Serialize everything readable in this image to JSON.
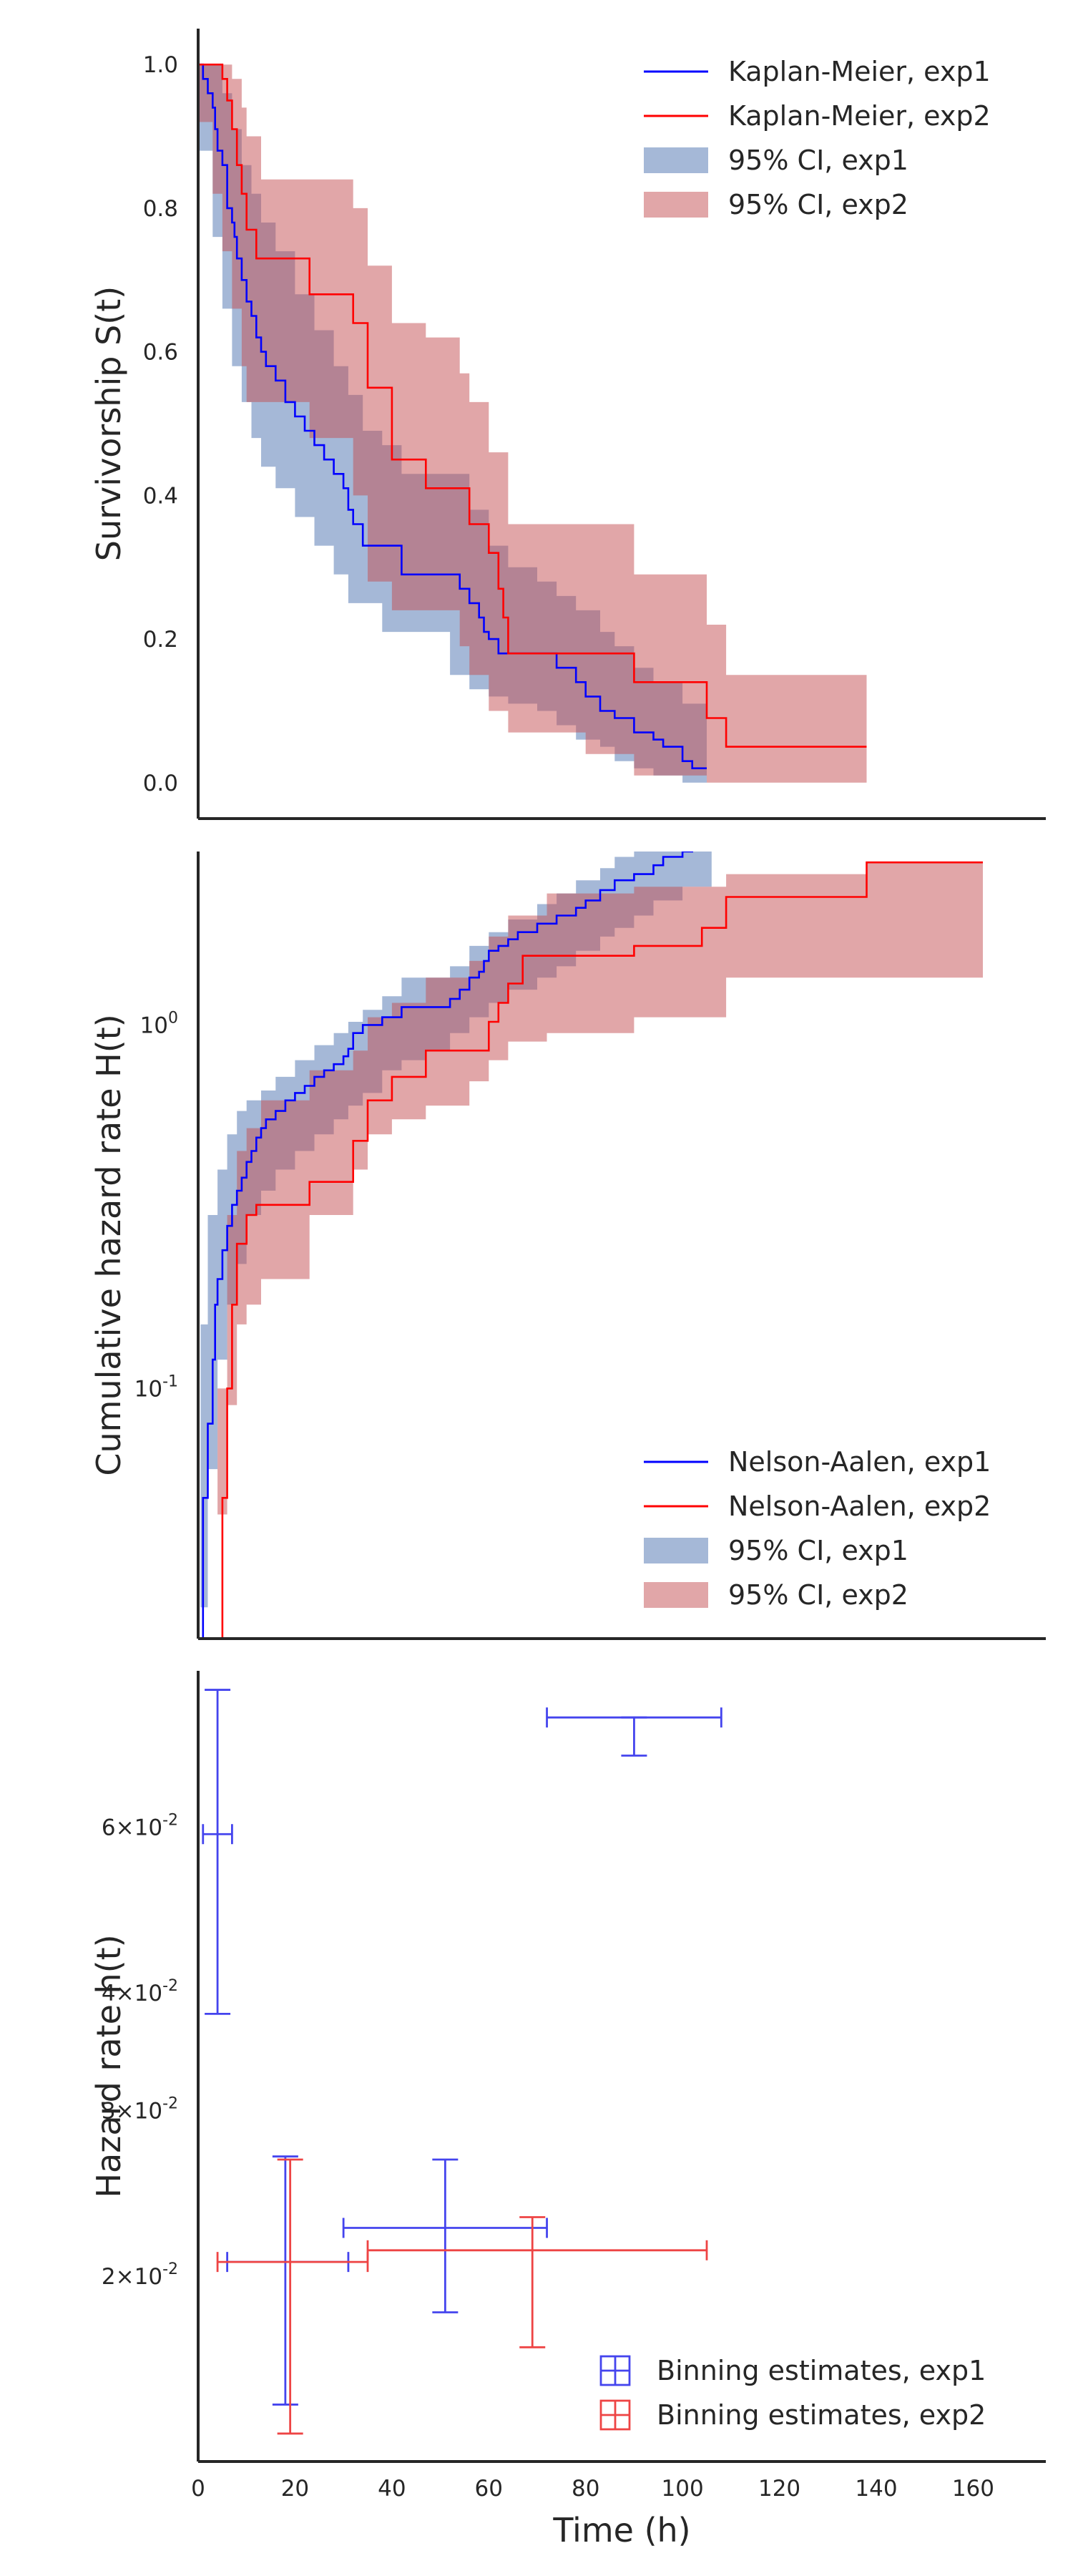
{
  "colors": {
    "exp1": "#0000ff",
    "exp2": "#ff0000",
    "ci_exp1": "#4c72b0",
    "ci_exp2": "#c44e52",
    "bin_exp1": "#4444ee",
    "bin_exp2": "#ee4444"
  },
  "chart_data": [
    {
      "type": "line",
      "ylabel": "Survivorship S(t)",
      "xlim": [
        0,
        175
      ],
      "ylim": [
        -0.05,
        1.05
      ],
      "yticks": [
        0.0,
        0.2,
        0.4,
        0.6,
        0.8,
        1.0
      ],
      "ytick_labels": [
        "0.0",
        "0.2",
        "0.4",
        "0.6",
        "0.8",
        "1.0"
      ],
      "legend_position": "top-right",
      "legend": [
        "Kaplan-Meier, exp1",
        "Kaplan-Meier, exp2",
        "95% CI, exp1",
        "95% CI, exp2"
      ],
      "series": [
        {
          "name": "Kaplan-Meier, exp1",
          "step": true,
          "x": [
            0,
            1,
            2,
            3,
            3.5,
            4,
            5,
            6,
            7,
            7.5,
            8,
            9,
            10,
            11,
            12,
            13,
            14,
            16,
            18,
            20,
            22,
            24,
            26,
            28,
            30,
            31,
            32,
            34,
            38,
            42,
            47,
            52,
            54,
            56,
            58,
            59,
            60,
            62,
            64,
            66,
            70,
            74,
            78,
            80,
            83,
            86,
            90,
            94,
            96,
            100,
            102,
            105
          ],
          "y": [
            1.0,
            0.98,
            0.96,
            0.94,
            0.91,
            0.88,
            0.86,
            0.8,
            0.78,
            0.76,
            0.73,
            0.7,
            0.67,
            0.65,
            0.62,
            0.6,
            0.58,
            0.56,
            0.53,
            0.51,
            0.49,
            0.47,
            0.45,
            0.43,
            0.41,
            0.38,
            0.36,
            0.33,
            0.33,
            0.29,
            0.29,
            0.29,
            0.27,
            0.25,
            0.23,
            0.21,
            0.2,
            0.18,
            0.18,
            0.18,
            0.18,
            0.16,
            0.14,
            0.12,
            0.1,
            0.09,
            0.07,
            0.06,
            0.05,
            0.03,
            0.02,
            0.02
          ]
        },
        {
          "name": "Kaplan-Meier, exp2",
          "step": true,
          "x": [
            0,
            3,
            5,
            6,
            7,
            8,
            9,
            10,
            12,
            15,
            23,
            32,
            35,
            40,
            47,
            54,
            56,
            60,
            62,
            63,
            64,
            67,
            72,
            80,
            90,
            99,
            105,
            109,
            138
          ],
          "y": [
            1.0,
            1.0,
            0.98,
            0.95,
            0.91,
            0.86,
            0.82,
            0.77,
            0.73,
            0.73,
            0.68,
            0.64,
            0.55,
            0.45,
            0.41,
            0.41,
            0.36,
            0.32,
            0.27,
            0.23,
            0.18,
            0.18,
            0.18,
            0.18,
            0.14,
            0.14,
            0.09,
            0.05,
            0.05
          ]
        },
        {
          "name": "95% CI, exp1",
          "band": true,
          "x": [
            0,
            3,
            5,
            7,
            9,
            11,
            13,
            16,
            20,
            24,
            28,
            31,
            34,
            38,
            42,
            47,
            52,
            56,
            60,
            64,
            70,
            74,
            78,
            83,
            86,
            90,
            94,
            100,
            105
          ],
          "lower": [
            1.0,
            0.88,
            0.76,
            0.66,
            0.58,
            0.53,
            0.48,
            0.44,
            0.41,
            0.37,
            0.33,
            0.29,
            0.25,
            0.25,
            0.21,
            0.21,
            0.21,
            0.15,
            0.13,
            0.12,
            0.11,
            0.1,
            0.08,
            0.06,
            0.05,
            0.03,
            0.02,
            0.01,
            0.0
          ],
          "upper": [
            1.0,
            1.0,
            0.96,
            0.91,
            0.86,
            0.82,
            0.78,
            0.74,
            0.68,
            0.63,
            0.58,
            0.54,
            0.49,
            0.47,
            0.43,
            0.43,
            0.43,
            0.38,
            0.33,
            0.3,
            0.28,
            0.26,
            0.24,
            0.21,
            0.19,
            0.16,
            0.14,
            0.11,
            0.07
          ]
        },
        {
          "name": "95% CI, exp2",
          "band": true,
          "x": [
            0,
            3,
            5,
            7,
            9,
            10,
            13,
            23,
            32,
            35,
            40,
            47,
            54,
            56,
            60,
            64,
            70,
            80,
            90,
            105,
            109,
            138
          ],
          "lower": [
            1.0,
            0.92,
            0.82,
            0.74,
            0.66,
            0.58,
            0.53,
            0.53,
            0.48,
            0.4,
            0.28,
            0.24,
            0.24,
            0.19,
            0.15,
            0.1,
            0.07,
            0.07,
            0.04,
            0.01,
            0.0,
            0.0
          ],
          "upper": [
            1.0,
            1.0,
            1.0,
            0.98,
            0.94,
            0.9,
            0.84,
            0.84,
            0.8,
            0.72,
            0.64,
            0.62,
            0.57,
            0.53,
            0.46,
            0.36,
            0.36,
            0.36,
            0.29,
            0.22,
            0.15,
            0.15
          ]
        }
      ]
    },
    {
      "type": "line",
      "ylabel": "Cumulative hazard rate H(t)",
      "yscale": "log",
      "xlim": [
        0,
        175
      ],
      "ylim": [
        0.0205,
        3.0
      ],
      "yticks": [
        0.1,
        1.0
      ],
      "ytick_labels": [
        "10^-1",
        "10^0"
      ],
      "legend_position": "bottom-right",
      "legend": [
        "Nelson-Aalen, exp1",
        "Nelson-Aalen, exp2",
        "95% CI, exp1",
        "95% CI, exp2"
      ],
      "series": [
        {
          "name": "Nelson-Aalen, exp1",
          "step": true,
          "x": [
            0.5,
            1,
            2,
            3,
            3.5,
            4,
            5,
            6,
            7,
            8,
            9,
            10,
            11,
            12,
            13,
            14,
            16,
            18,
            20,
            22,
            24,
            26,
            28,
            30,
            31,
            32,
            34,
            38,
            42,
            47,
            52,
            54,
            56,
            58,
            59,
            60,
            62,
            64,
            66,
            70,
            74,
            78,
            80,
            83,
            86,
            90,
            94,
            96,
            100,
            102,
            106
          ],
          "y": [
            0.02,
            0.05,
            0.08,
            0.12,
            0.17,
            0.2,
            0.24,
            0.28,
            0.32,
            0.35,
            0.38,
            0.42,
            0.45,
            0.49,
            0.52,
            0.55,
            0.58,
            0.62,
            0.65,
            0.68,
            0.72,
            0.75,
            0.78,
            0.82,
            0.86,
            0.95,
            1.0,
            1.05,
            1.12,
            1.12,
            1.18,
            1.25,
            1.35,
            1.4,
            1.5,
            1.6,
            1.65,
            1.72,
            1.8,
            1.9,
            2.0,
            2.1,
            2.2,
            2.35,
            2.5,
            2.6,
            2.75,
            2.9,
            3.0,
            3.2,
            3.5
          ]
        },
        {
          "name": "Nelson-Aalen, exp2",
          "step": true,
          "x": [
            4,
            5,
            6,
            7,
            8,
            10,
            12,
            23,
            32,
            35,
            40,
            47,
            56,
            60,
            62,
            64,
            67,
            72,
            80,
            90,
            104,
            109,
            138,
            162
          ],
          "y": [
            0.02,
            0.05,
            0.1,
            0.17,
            0.25,
            0.3,
            0.32,
            0.37,
            0.48,
            0.62,
            0.72,
            0.85,
            0.85,
            1.02,
            1.15,
            1.3,
            1.55,
            1.55,
            1.55,
            1.65,
            1.85,
            2.25,
            2.8,
            2.8
          ]
        },
        {
          "name": "95% CI, exp1",
          "band": true,
          "x": [
            0.5,
            2,
            4,
            6,
            8,
            10,
            13,
            16,
            20,
            24,
            28,
            31,
            34,
            38,
            42,
            47,
            52,
            56,
            60,
            64,
            70,
            74,
            78,
            83,
            86,
            90,
            94,
            100,
            106
          ],
          "lower": [
            0.0205,
            0.025,
            0.06,
            0.12,
            0.17,
            0.22,
            0.3,
            0.35,
            0.4,
            0.45,
            0.5,
            0.55,
            0.6,
            0.65,
            0.75,
            0.8,
            0.85,
            0.95,
            1.05,
            1.15,
            1.25,
            1.35,
            1.45,
            1.6,
            1.75,
            1.85,
            2.0,
            2.2,
            2.4
          ],
          "upper": [
            0.15,
            0.3,
            0.4,
            0.5,
            0.58,
            0.62,
            0.66,
            0.72,
            0.8,
            0.88,
            0.95,
            1.02,
            1.1,
            1.2,
            1.35,
            1.35,
            1.45,
            1.65,
            1.8,
            1.95,
            2.15,
            2.3,
            2.5,
            2.7,
            2.9,
            3.0,
            3.0,
            3.0,
            3.0
          ]
        },
        {
          "name": "95% CI, exp2",
          "band": true,
          "x": [
            4,
            6,
            8,
            10,
            13,
            23,
            32,
            35,
            40,
            47,
            56,
            60,
            64,
            72,
            90,
            109,
            138,
            162
          ],
          "lower": [
            0.0205,
            0.045,
            0.09,
            0.15,
            0.17,
            0.2,
            0.3,
            0.4,
            0.5,
            0.55,
            0.6,
            0.7,
            0.8,
            0.9,
            0.95,
            1.05,
            1.35,
            1.35
          ],
          "upper": [
            0.1,
            0.3,
            0.45,
            0.52,
            0.62,
            0.75,
            0.85,
            1.05,
            1.15,
            1.35,
            1.5,
            1.75,
            2.0,
            2.3,
            2.4,
            2.6,
            2.8,
            2.8
          ]
        }
      ]
    },
    {
      "type": "scatter",
      "ylabel": "Hazard rate h(t)",
      "xlabel": "Time (h)",
      "yscale": "log",
      "xlim": [
        0,
        175
      ],
      "ylim": [
        0.0127,
        0.088
      ],
      "xticks": [
        0,
        20,
        40,
        60,
        80,
        100,
        120,
        140,
        160
      ],
      "xtick_labels": [
        "0",
        "20",
        "40",
        "60",
        "80",
        "100",
        "120",
        "140",
        "160"
      ],
      "yticks": [
        0.02,
        0.03,
        0.04,
        0.06
      ],
      "ytick_labels": [
        "2×10^-2",
        "3×10^-2",
        "4×10^-2",
        "6×10^-2"
      ],
      "legend_position": "bottom-right",
      "legend": [
        "Binning estimates, exp1",
        "Binning estimates, exp2"
      ],
      "series": [
        {
          "name": "Binning estimates, exp1",
          "points": [
            {
              "x": 4,
              "xerr": [
                1,
                7
              ],
              "y": 0.059,
              "yerr": [
                0.038,
                0.084
              ]
            },
            {
              "x": 18,
              "xerr": [
                6,
                31
              ],
              "y": 0.0207,
              "yerr": [
                0.0146,
                0.0268
              ]
            },
            {
              "x": 51,
              "xerr": [
                30,
                72
              ],
              "y": 0.0225,
              "yerr": [
                0.0183,
                0.0266
              ]
            },
            {
              "x": 90,
              "xerr": [
                72,
                108
              ],
              "y": 0.0785,
              "yerr": [
                0.0715,
                0.0785
              ]
            }
          ]
        },
        {
          "name": "Binning estimates, exp2",
          "points": [
            {
              "x": 19,
              "xerr": [
                4,
                35
              ],
              "y": 0.0207,
              "yerr": [
                0.0136,
                0.0266
              ]
            },
            {
              "x": 69,
              "xerr": [
                35,
                105
              ],
              "y": 0.0213,
              "yerr": [
                0.0168,
                0.0231
              ]
            }
          ]
        }
      ]
    }
  ]
}
